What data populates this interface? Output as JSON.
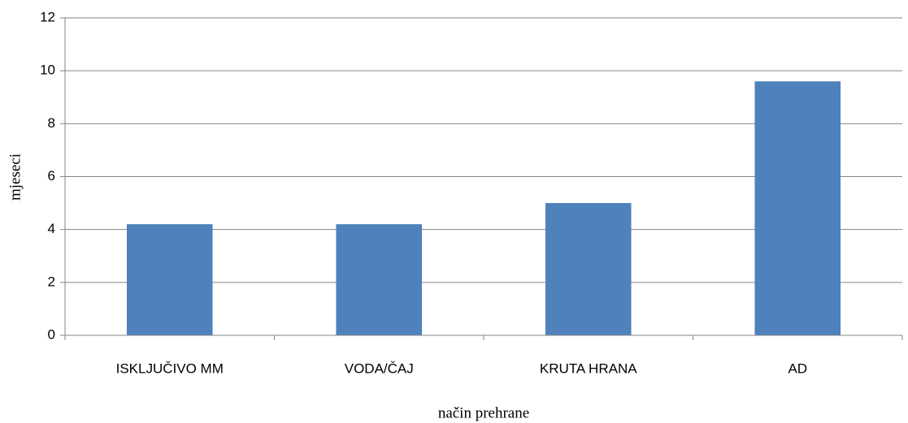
{
  "chart_data": {
    "type": "bar",
    "x_label": "način prehrane",
    "y_label": "mjeseci",
    "categories": [
      "ISKLJUČIVO MM",
      "VODA/ČAJ",
      "KRUTA HRANA",
      "AD"
    ],
    "values": [
      4.2,
      4.2,
      5.0,
      9.6
    ],
    "color": "#4f81bd",
    "ylim": [
      0,
      12
    ],
    "yticks": [
      0,
      2,
      4,
      6,
      8,
      10,
      12
    ],
    "grid": true
  }
}
